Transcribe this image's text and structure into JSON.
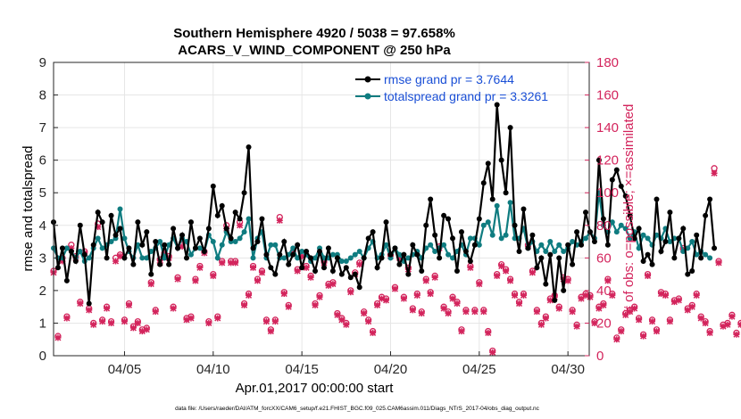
{
  "chart_data": {
    "type": "line",
    "title": "Southern Hemisphere 4920 / 5038 = 97.658%",
    "subtitle": "ACARS_V_WIND_COMPONENT @ 250 hPa",
    "xlabel": "Apr.01,2017 00:00:00 start",
    "ylabel_left": "rmse and totalspread",
    "ylabel_right": "# of obs: o=possible; ×=assimilated",
    "xlim": [
      1,
      31.2
    ],
    "ylim_left": [
      0,
      9
    ],
    "ylim_right": [
      0,
      180
    ],
    "x_ticks": [
      {
        "x": 5,
        "label": "04/05"
      },
      {
        "x": 10,
        "label": "04/10"
      },
      {
        "x": 15,
        "label": "04/15"
      },
      {
        "x": 20,
        "label": "04/20"
      },
      {
        "x": 25,
        "label": "04/25"
      },
      {
        "x": 30,
        "label": "04/30"
      }
    ],
    "y_ticks_left": [
      "0",
      "1",
      "2",
      "3",
      "4",
      "5",
      "6",
      "7",
      "8",
      "9"
    ],
    "y_ticks_right": [
      "0",
      "20",
      "40",
      "60",
      "80",
      "100",
      "120",
      "140",
      "160",
      "180"
    ],
    "series": [
      {
        "name": "rmse grand pr = 3.7644",
        "color": "#000000",
        "axis": "left",
        "start_x": 1.0,
        "step": 0.25,
        "values": [
          4.1,
          2.7,
          3.3,
          2.3,
          3.2,
          2.9,
          4.0,
          3.1,
          1.6,
          3.4,
          4.4,
          4.1,
          3.0,
          4.3,
          3.7,
          3.9,
          3.0,
          3.3,
          2.8,
          4.1,
          3.4,
          3.8,
          2.5,
          3.5,
          2.8,
          3.4,
          2.8,
          3.9,
          3.3,
          3.7,
          3.0,
          4.1,
          3.3,
          3.6,
          3.2,
          3.9,
          5.2,
          4.3,
          4.6,
          3.9,
          3.6,
          4.4,
          4.2,
          5.0,
          6.4,
          3.3,
          3.5,
          4.2,
          3.1,
          2.7,
          2.5,
          3.1,
          3.5,
          2.8,
          3.1,
          3.4,
          2.7,
          3.2,
          3.0,
          2.6,
          3.2,
          2.7,
          3.3,
          2.6,
          3.0,
          2.5,
          2.7,
          2.4,
          2.5,
          2.1,
          3.0,
          3.6,
          3.8,
          2.7,
          3.0,
          4.1,
          3.1,
          3.3,
          2.8,
          3.1,
          2.5,
          3.4,
          3.1,
          2.6,
          4.0,
          4.8,
          3.7,
          3.0,
          4.3,
          4.2,
          3.6,
          2.6,
          3.8,
          3.2,
          2.9,
          3.4,
          4.2,
          5.3,
          5.9,
          4.8,
          7.7,
          6.0,
          5.0,
          7.0,
          4.0,
          3.2,
          4.5,
          3.3,
          3.7,
          2.7,
          3.0,
          2.2,
          3.1,
          1.7,
          3.0,
          2.0,
          3.4,
          2.8,
          3.8,
          3.4,
          4.4,
          3.8,
          3.5,
          6.0,
          4.2,
          3.4,
          5.4,
          5.7,
          5.2,
          4.9,
          4.3,
          3.6,
          3.9,
          2.9,
          3.1,
          2.8,
          4.8,
          3.2,
          3.5,
          4.4,
          3.0,
          3.6,
          3.9,
          2.5,
          2.6,
          3.7,
          3.0,
          4.3,
          4.8,
          3.3
        ]
      },
      {
        "name": "totalspread grand pr = 3.3261",
        "color": "#0f7c80",
        "axis": "left",
        "start_x": 1.0,
        "step": 0.25,
        "values": [
          3.3,
          3.0,
          3.0,
          3.3,
          3.2,
          3.0,
          3.2,
          2.9,
          3.0,
          3.3,
          3.6,
          3.3,
          3.4,
          3.5,
          3.6,
          4.5,
          3.6,
          3.2,
          3.0,
          3.4,
          3.0,
          3.0,
          3.2,
          3.3,
          3.5,
          3.0,
          3.4,
          3.6,
          3.3,
          3.6,
          3.5,
          3.1,
          3.3,
          3.3,
          3.2,
          3.7,
          3.5,
          3.0,
          3.4,
          3.8,
          3.5,
          3.5,
          3.6,
          3.8,
          4.2,
          3.0,
          3.6,
          3.8,
          3.0,
          3.4,
          3.4,
          3.0,
          3.0,
          3.1,
          3.3,
          3.0,
          3.2,
          3.1,
          2.9,
          3.0,
          3.3,
          3.0,
          3.0,
          3.1,
          3.1,
          2.9,
          2.9,
          3.0,
          3.1,
          3.2,
          3.0,
          3.3,
          3.5,
          3.0,
          3.1,
          3.4,
          3.0,
          3.3,
          3.1,
          2.9,
          3.0,
          3.1,
          3.2,
          3.0,
          3.3,
          3.4,
          3.2,
          3.3,
          3.4,
          3.1,
          3.0,
          3.2,
          3.4,
          3.1,
          3.6,
          3.6,
          3.4,
          4.0,
          4.1,
          3.7,
          4.6,
          3.6,
          3.7,
          4.7,
          3.6,
          3.6,
          3.9,
          3.3,
          3.5,
          3.2,
          3.4,
          3.2,
          3.5,
          3.2,
          3.4,
          3.2,
          3.3,
          3.5,
          3.4,
          3.5,
          3.6,
          3.8,
          3.6,
          5.0,
          4.0,
          3.8,
          4.1,
          3.8,
          4.0,
          3.9,
          3.6,
          3.8,
          3.3,
          3.7,
          3.6,
          3.4,
          3.7,
          3.6,
          3.9,
          3.5,
          3.6,
          3.6,
          3.2,
          3.3,
          3.5,
          3.1,
          3.2,
          3.1,
          3.0
        ]
      },
      {
        "name": "possible",
        "color": "#d3245c",
        "axis": "right",
        "marker": "circle",
        "start_x": 1.0,
        "step": 0.25,
        "values": [
          52,
          12,
          60,
          24,
          68,
          61,
          33,
          64,
          29,
          20,
          81,
          22,
          30,
          21,
          60,
          62,
          22,
          32,
          18,
          21,
          16,
          17,
          45,
          28,
          59,
          63,
          61,
          30,
          48,
          68,
          23,
          24,
          47,
          55,
          64,
          21,
          50,
          24,
          58,
          80,
          58,
          58,
          82,
          32,
          38,
          55,
          47,
          52,
          22,
          16,
          22,
          85,
          39,
          31,
          64,
          53,
          62,
          55,
          49,
          32,
          37,
          58,
          44,
          45,
          26,
          23,
          20,
          40,
          51,
          57,
          27,
          22,
          15,
          32,
          36,
          35,
          62,
          42,
          61,
          36,
          54,
          29,
          38,
          27,
          47,
          39,
          49,
          67,
          30,
          27,
          36,
          33,
          16,
          28,
          55,
          28,
          45,
          28,
          15,
          3,
          50,
          56,
          53,
          47,
          38,
          33,
          38,
          68,
          52,
          28,
          20,
          24,
          35,
          37,
          30,
          48,
          47,
          28,
          19,
          36,
          38,
          37,
          21,
          30,
          32,
          47,
          38,
          11,
          16,
          26,
          28,
          30,
          23,
          13,
          50,
          22,
          16,
          39,
          38,
          22,
          34,
          35,
          66,
          29,
          31,
          38,
          24,
          21,
          15,
          115,
          58,
          19,
          20,
          25,
          14,
          20
        ]
      },
      {
        "name": "assimilated",
        "color": "#d3245c",
        "axis": "right",
        "marker": "x",
        "start_x": 1.0,
        "step": 0.25,
        "values": [
          51,
          11,
          58,
          23,
          66,
          60,
          32,
          63,
          28,
          19,
          79,
          21,
          29,
          20,
          58,
          61,
          21,
          31,
          17,
          20,
          15,
          16,
          44,
          27,
          57,
          62,
          60,
          29,
          47,
          67,
          22,
          23,
          46,
          54,
          63,
          20,
          49,
          23,
          57,
          78,
          57,
          57,
          80,
          31,
          37,
          54,
          46,
          51,
          21,
          15,
          21,
          83,
          38,
          30,
          63,
          52,
          61,
          54,
          48,
          31,
          36,
          57,
          43,
          44,
          25,
          22,
          19,
          39,
          50,
          56,
          26,
          21,
          14,
          31,
          35,
          34,
          61,
          41,
          60,
          35,
          53,
          28,
          37,
          26,
          46,
          38,
          48,
          66,
          29,
          26,
          35,
          32,
          15,
          27,
          54,
          27,
          44,
          27,
          14,
          2,
          49,
          55,
          52,
          46,
          37,
          32,
          37,
          67,
          51,
          27,
          19,
          23,
          34,
          36,
          29,
          47,
          46,
          27,
          18,
          35,
          37,
          36,
          20,
          29,
          31,
          46,
          37,
          10,
          15,
          25,
          27,
          29,
          22,
          12,
          49,
          21,
          15,
          38,
          37,
          21,
          33,
          34,
          65,
          28,
          30,
          37,
          23,
          20,
          14,
          112,
          57,
          18,
          19,
          24,
          13,
          19
        ]
      }
    ],
    "legend": [
      "rmse grand pr = 3.7644",
      "totalspread grand pr = 3.3261"
    ],
    "legend_position": "top-right"
  },
  "footer": "data file: /Users/raeder/DAI/ATM_forcXX/CAM6_setup/f.e21.FHIST_BGC.f09_025.CAM6assim.011/Diags_NTrS_2017-04/obs_diag_output.nc"
}
